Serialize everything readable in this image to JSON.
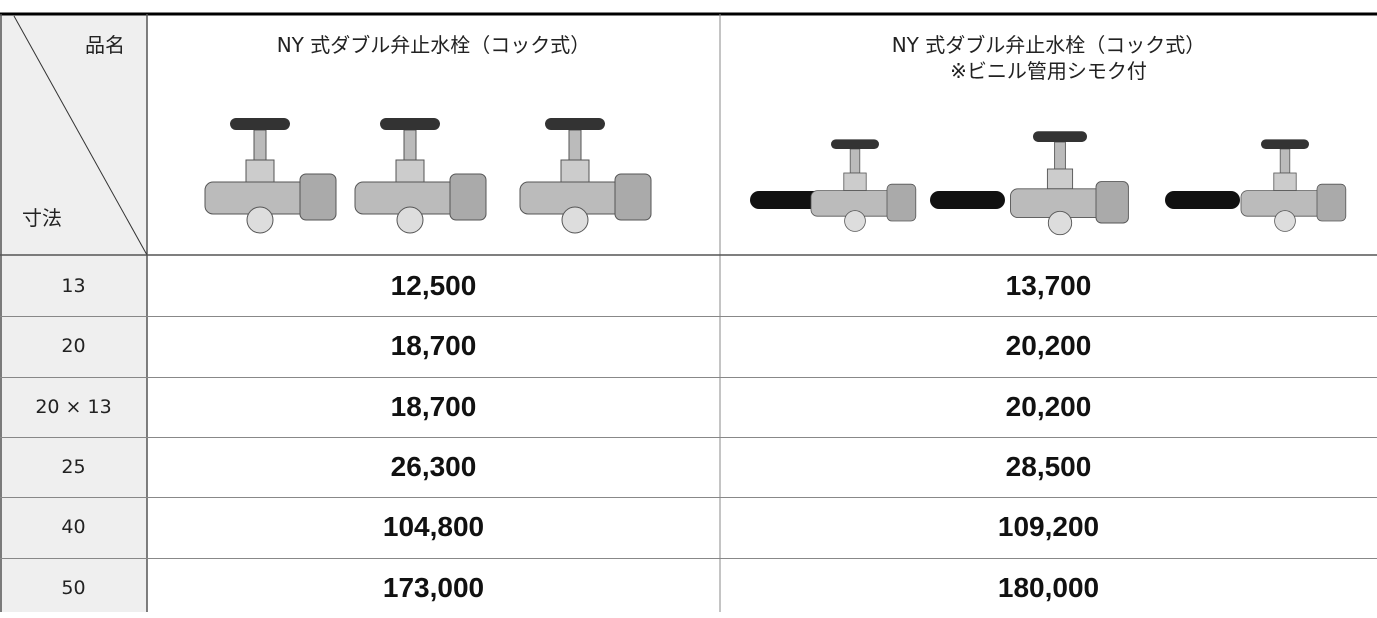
{
  "table": {
    "corner_top": "品名",
    "corner_bottom": "寸法",
    "columns": [
      {
        "title": "NY 式ダブル弁止水栓（コック式）"
      },
      {
        "title": "NY 式ダブル弁止水栓（コック式）",
        "subtitle": "※ビニル管用シモク付"
      }
    ],
    "rows": [
      [
        "13",
        "12,500",
        "13,700"
      ],
      [
        "20",
        "18,700",
        "20,200"
      ],
      [
        "20 × 13",
        "18,700",
        "20,200"
      ],
      [
        "25",
        "26,300",
        "28,500"
      ],
      [
        "40",
        "104,800",
        "109,200"
      ],
      [
        "50",
        "173,000",
        "180,000"
      ]
    ]
  }
}
